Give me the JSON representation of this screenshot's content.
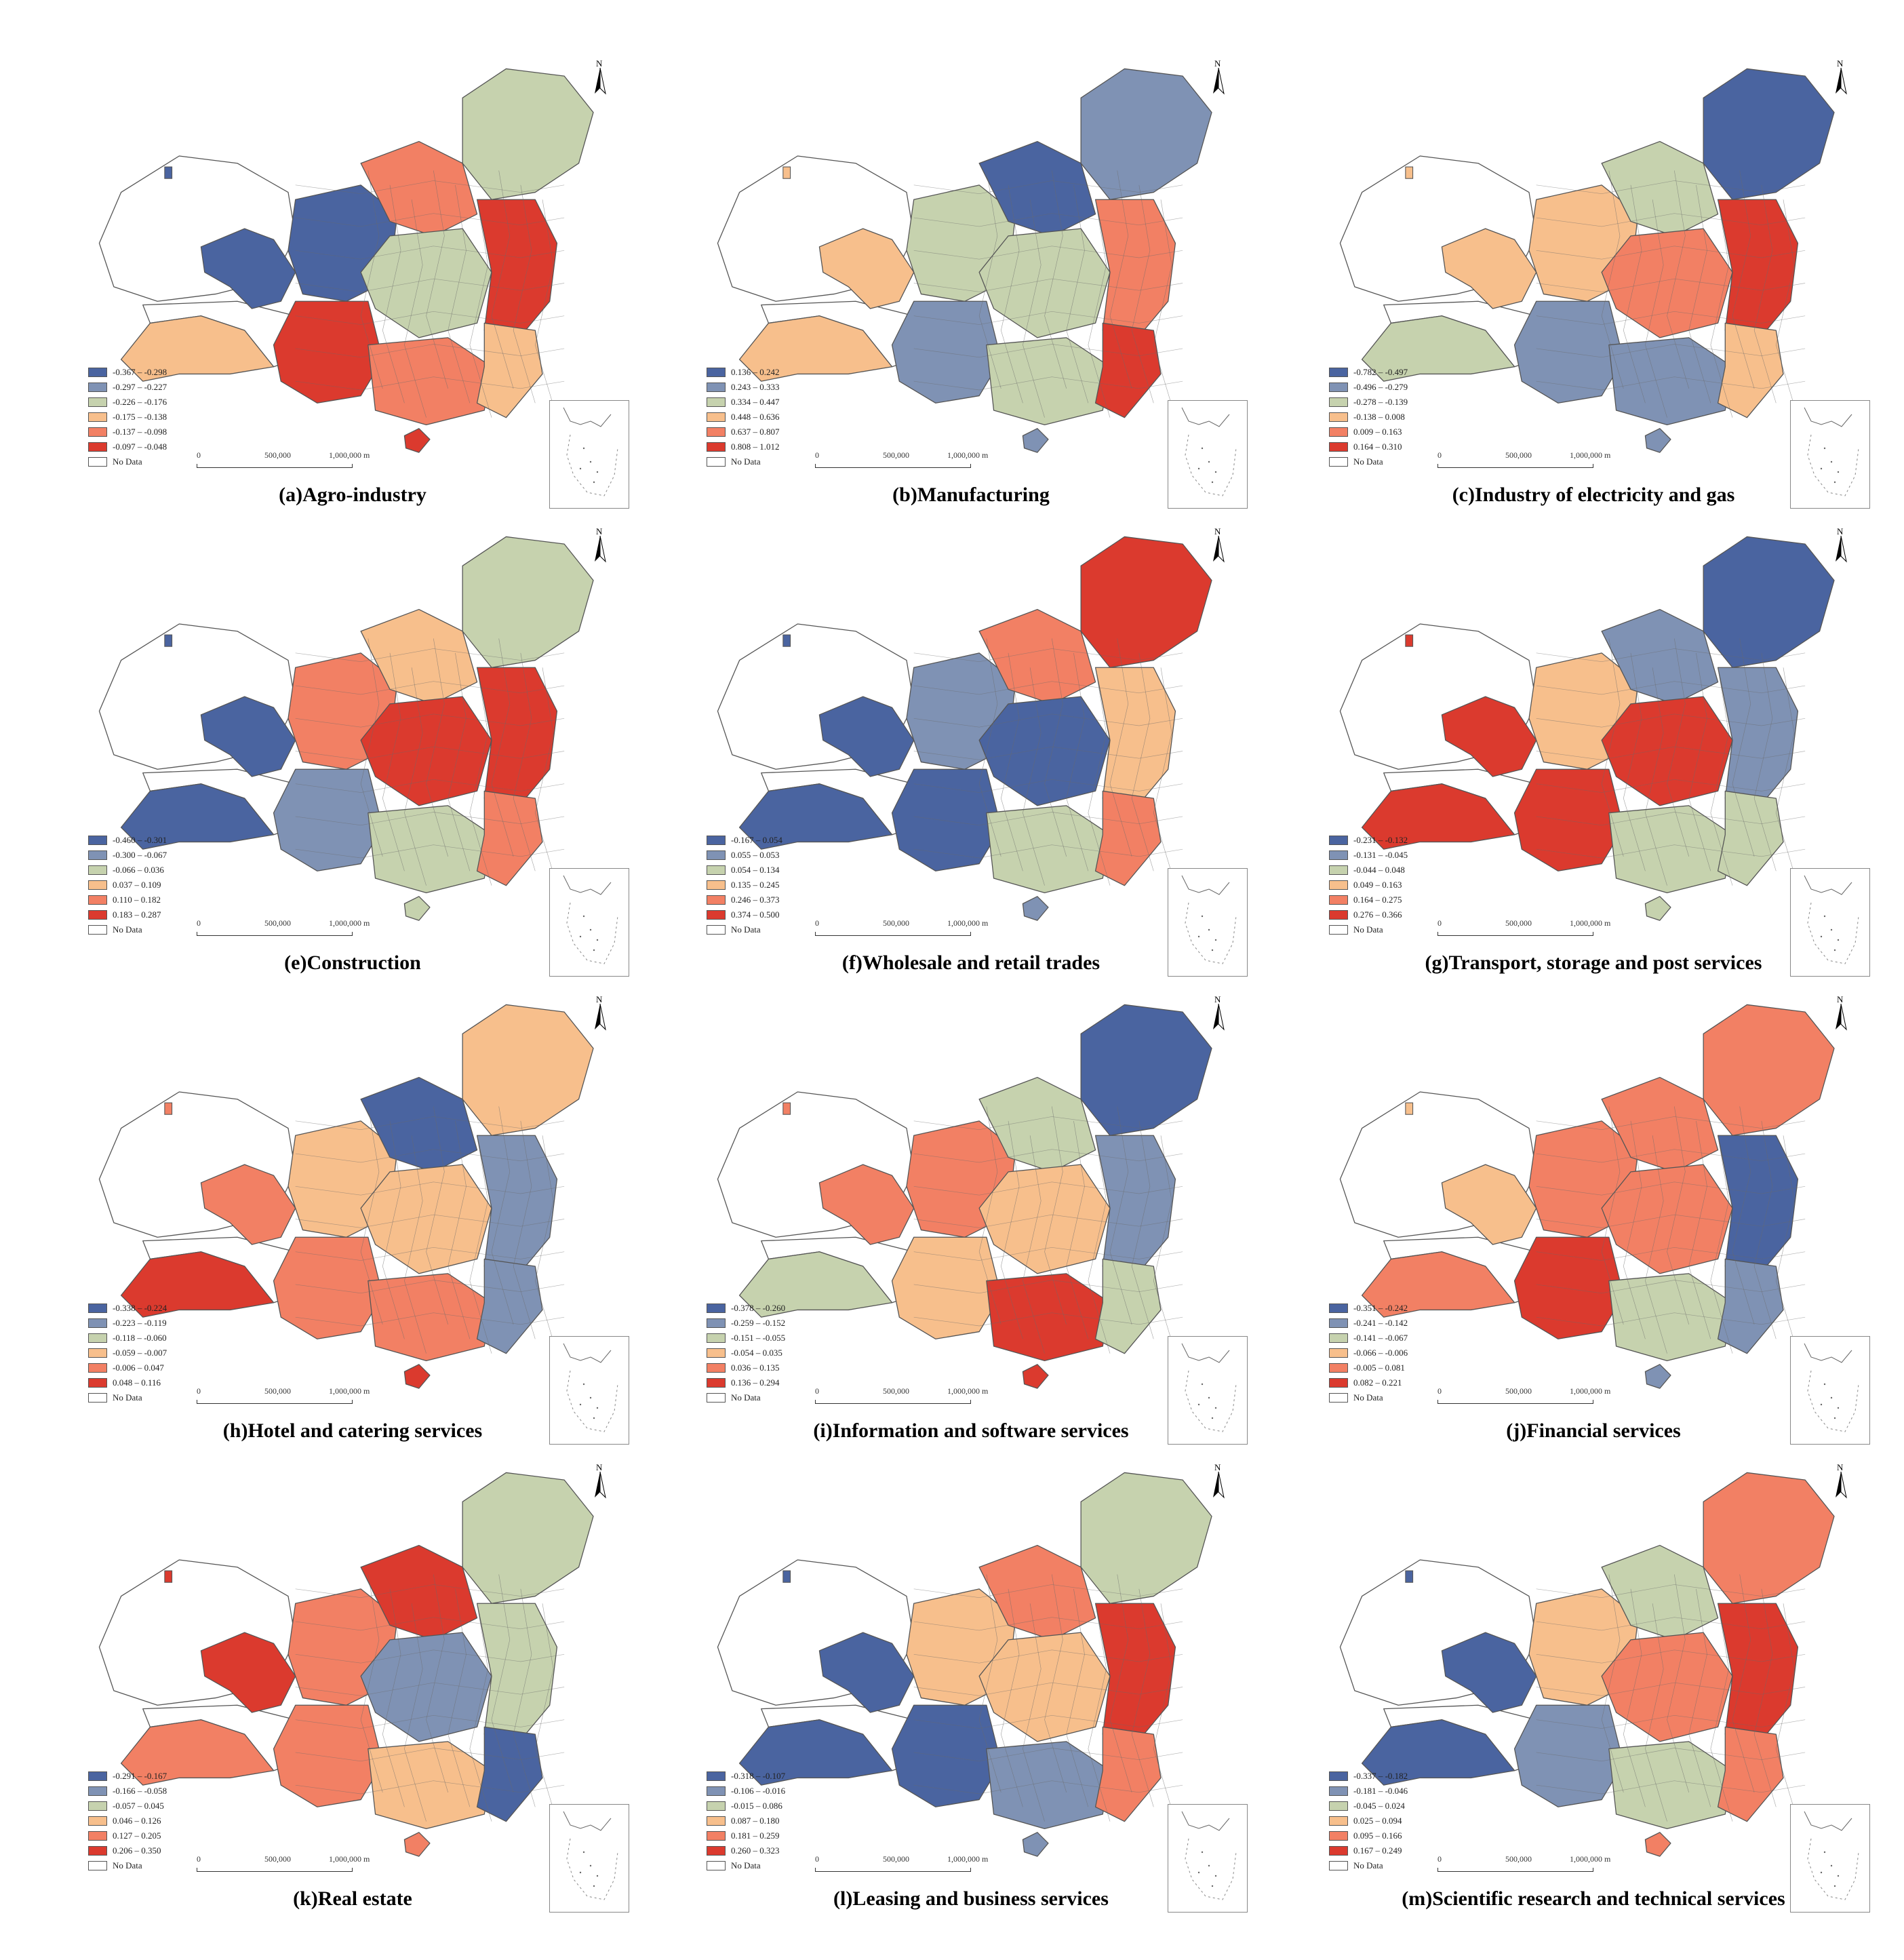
{
  "colors": {
    "c1": "#4a64a0",
    "c2": "#7f92b4",
    "c3": "#c6d2ae",
    "c4": "#f7bf8c",
    "c5": "#f28064",
    "c6": "#db3a2e",
    "nodata": "#ffffff",
    "boundary": "#555555"
  },
  "north_label": "N",
  "scale_labels": [
    "0",
    "500,000",
    "1,000,000 m"
  ],
  "no_data_label": "No Data",
  "panels": [
    {
      "caption": "(a)Agro-industry",
      "legend": [
        "-0.367 – -0.298",
        "-0.297 – -0.227",
        "-0.226 – -0.176",
        "-0.175 – -0.138",
        "-0.137 – -0.098",
        "-0.097 – -0.048"
      ],
      "regions": {
        "NE": 3,
        "N": 5,
        "NC": 1,
        "NW": 1,
        "E": 6,
        "C": 3,
        "SW": 6,
        "S": 5,
        "SE": 4,
        "Tibet": 4,
        "Xinj": 0,
        "Hain": 6
      }
    },
    {
      "caption": "(b)Manufacturing",
      "legend": [
        "0.136 – 0.242",
        "0.243 – 0.333",
        "0.334 – 0.447",
        "0.448 – 0.636",
        "0.637 – 0.807",
        "0.808 – 1.012"
      ],
      "regions": {
        "NE": 2,
        "N": 1,
        "NC": 3,
        "NW": 4,
        "E": 5,
        "C": 3,
        "SW": 2,
        "S": 3,
        "SE": 6,
        "Tibet": 4,
        "Xinj": 0,
        "Hain": 2
      }
    },
    {
      "caption": "(c)Industry of electricity and gas",
      "legend": [
        "-0.782 – -0.497",
        "-0.496 – -0.279",
        "-0.278 – -0.139",
        "-0.138 – 0.008",
        "0.009 – 0.163",
        "0.164 – 0.310"
      ],
      "regions": {
        "NE": 1,
        "N": 3,
        "NC": 4,
        "NW": 4,
        "E": 6,
        "C": 5,
        "SW": 2,
        "S": 2,
        "SE": 4,
        "Tibet": 3,
        "Xinj": 0,
        "Hain": 2
      }
    },
    {
      "caption": "(e)Construction",
      "legend": [
        "-0.460 – -0.301",
        "-0.300 – -0.067",
        "-0.066 – 0.036",
        "0.037 – 0.109",
        "0.110 – 0.182",
        "0.183 – 0.287"
      ],
      "regions": {
        "NE": 3,
        "N": 4,
        "NC": 5,
        "NW": 1,
        "E": 6,
        "C": 6,
        "SW": 2,
        "S": 3,
        "SE": 5,
        "Tibet": 1,
        "Xinj": 0,
        "Hain": 3
      }
    },
    {
      "caption": "(f)Wholesale and retail trades",
      "legend": [
        "-0.167 – 0.054",
        "0.055 – 0.053",
        "0.054 – 0.134",
        "0.135 – 0.245",
        "0.246 – 0.373",
        "0.374 – 0.500"
      ],
      "regions": {
        "NE": 6,
        "N": 5,
        "NC": 2,
        "NW": 1,
        "E": 4,
        "C": 1,
        "SW": 1,
        "S": 3,
        "SE": 5,
        "Tibet": 1,
        "Xinj": 0,
        "Hain": 2
      }
    },
    {
      "caption": "(g)Transport, storage and post services",
      "legend": [
        "-0.231 – -0.132",
        "-0.131 – -0.045",
        "-0.044 – 0.048",
        "0.049 – 0.163",
        "0.164 – 0.275",
        "0.276 – 0.366"
      ],
      "regions": {
        "NE": 1,
        "N": 2,
        "NC": 4,
        "NW": 6,
        "E": 2,
        "C": 6,
        "SW": 6,
        "S": 3,
        "SE": 3,
        "Tibet": 6,
        "Xinj": 0,
        "Hain": 3
      }
    },
    {
      "caption": "(h)Hotel and catering services",
      "legend": [
        "-0.338 – -0.224",
        "-0.223 – -0.119",
        "-0.118 – -0.060",
        "-0.059 – -0.007",
        "-0.006 – 0.047",
        "0.048 – 0.116"
      ],
      "regions": {
        "NE": 4,
        "N": 1,
        "NC": 4,
        "NW": 5,
        "E": 2,
        "C": 4,
        "SW": 5,
        "S": 5,
        "SE": 2,
        "Tibet": 6,
        "Xinj": 0,
        "Hain": 6
      }
    },
    {
      "caption": "(i)Information and software services",
      "legend": [
        "-0.378 – -0.260",
        "-0.259 – -0.152",
        "-0.151 – -0.055",
        "-0.054 – 0.035",
        "0.036 – 0.135",
        "0.136 – 0.294"
      ],
      "regions": {
        "NE": 1,
        "N": 3,
        "NC": 5,
        "NW": 5,
        "E": 2,
        "C": 4,
        "SW": 4,
        "S": 6,
        "SE": 3,
        "Tibet": 3,
        "Xinj": 0,
        "Hain": 6
      }
    },
    {
      "caption": "(j)Financial services",
      "legend": [
        "-0.351 – -0.242",
        "-0.241 – -0.142",
        "-0.141 – -0.067",
        "-0.066 – -0.006",
        "-0.005 – 0.081",
        "0.082 – 0.221"
      ],
      "regions": {
        "NE": 5,
        "N": 5,
        "NC": 5,
        "NW": 4,
        "E": 1,
        "C": 5,
        "SW": 6,
        "S": 3,
        "SE": 2,
        "Tibet": 5,
        "Xinj": 0,
        "Hain": 2
      }
    },
    {
      "caption": "(k)Real estate",
      "legend": [
        "-0.291 – -0.167",
        "-0.166 – -0.058",
        "-0.057 – 0.045",
        "0.046 – 0.126",
        "0.127 – 0.205",
        "0.206 – 0.350"
      ],
      "regions": {
        "NE": 3,
        "N": 6,
        "NC": 5,
        "NW": 6,
        "E": 3,
        "C": 2,
        "SW": 5,
        "S": 4,
        "SE": 1,
        "Tibet": 5,
        "Xinj": 0,
        "Hain": 5
      }
    },
    {
      "caption": "(l)Leasing and business services",
      "legend": [
        "-0.318 – -0.107",
        "-0.106 – -0.016",
        "-0.015 – 0.086",
        "0.087 – 0.180",
        "0.181 – 0.259",
        "0.260 – 0.323"
      ],
      "regions": {
        "NE": 3,
        "N": 5,
        "NC": 4,
        "NW": 1,
        "E": 6,
        "C": 4,
        "SW": 1,
        "S": 2,
        "SE": 5,
        "Tibet": 1,
        "Xinj": 0,
        "Hain": 2
      }
    },
    {
      "caption": "(m)Scientific research and technical services",
      "legend": [
        "-0.337 – -0.182",
        "-0.181 – -0.046",
        "-0.045 – 0.024",
        "0.025 – 0.094",
        "0.095 – 0.166",
        "0.167 – 0.249"
      ],
      "regions": {
        "NE": 5,
        "N": 3,
        "NC": 4,
        "NW": 1,
        "E": 6,
        "C": 5,
        "SW": 2,
        "S": 3,
        "SE": 5,
        "Tibet": 1,
        "Xinj": 0,
        "Hain": 5
      }
    }
  ]
}
